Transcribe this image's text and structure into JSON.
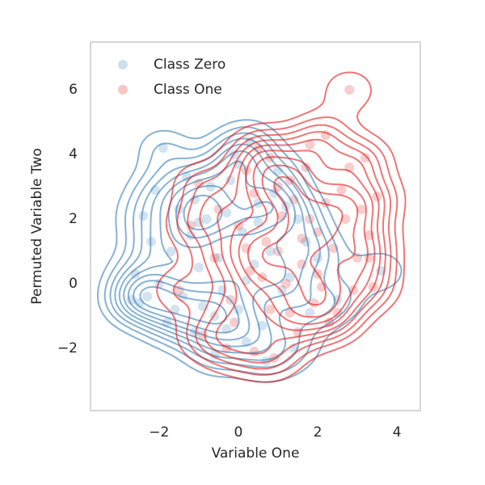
{
  "chart_data": {
    "type": "scatter",
    "x_label": "Variable One",
    "y_label": "Permuted Variable Two",
    "xlim": [
      -3.73,
      4.59
    ],
    "ylim": [
      -3.93,
      7.48
    ],
    "xticks": [
      {
        "value": -2,
        "label": "−2"
      },
      0,
      2,
      4
    ],
    "yticks": [
      {
        "value": -2,
        "label": "−2"
      },
      0,
      2,
      4,
      6
    ],
    "grid": false,
    "legend": "upper left",
    "kde_contours": true,
    "series": [
      {
        "name": "Class Zero",
        "color": "#377eb8",
        "x": [
          -2.7,
          -2.5,
          -2.3,
          -2.0,
          -2.6,
          -1.9,
          -2.1,
          -1.5,
          -1.2,
          -1.0,
          -1.4,
          -1.1,
          -0.6,
          -0.3,
          0.0,
          0.2,
          -0.5,
          -0.8,
          -0.2,
          0.3,
          -0.1,
          0.5,
          0.8,
          1.1,
          0.6,
          1.4,
          1.8,
          2.0,
          1.5,
          1.0,
          -1.7,
          -1.8,
          -0.9,
          -0.4,
          0.1,
          0.4,
          -0.7,
          -1.3,
          0.9,
          1.3,
          3.6,
          2.5,
          -2.2,
          -1.6,
          0.7,
          -0.3,
          0.0,
          -1.0,
          0.2,
          1.7,
          -2.4,
          -0.6,
          0.5,
          1.2,
          -1.1
        ],
        "y": [
          -0.5,
          -0.6,
          -0.4,
          0.0,
          0.3,
          4.2,
          2.9,
          2.3,
          1.5,
          0.5,
          -0.4,
          -1.5,
          -2.2,
          -1.4,
          -0.8,
          0.1,
          0.8,
          2.0,
          3.2,
          4.4,
          4.0,
          2.5,
          1.0,
          -0.2,
          -1.3,
          -2.0,
          -0.9,
          0.8,
          2.0,
          3.5,
          1.0,
          -1.2,
          -0.7,
          -0.2,
          1.6,
          0.6,
          3.0,
          3.3,
          2.8,
          0.2,
          0.4,
          -0.5,
          1.3,
          -0.8,
          -2.4,
          2.2,
          3.7,
          1.9,
          -1.8,
          1.3,
          2.1,
          -1.0,
          1.9,
          2.4,
          2.6
        ]
      },
      {
        "name": "Class One",
        "color": "#e41a1c",
        "x": [
          2.8,
          3.2,
          2.2,
          1.8,
          0.8,
          0.2,
          1.3,
          2.8,
          3.5,
          3.3,
          3.0,
          2.7,
          3.3,
          3.4,
          2.5,
          2.0,
          1.6,
          1.1,
          0.7,
          0.3,
          -0.2,
          -0.6,
          -1.2,
          -1.5,
          -0.9,
          -0.3,
          0.4,
          0.9,
          1.5,
          2.3,
          1.9,
          1.2,
          0.6,
          1.0,
          1.4,
          2.2,
          2.6,
          0.4,
          -0.5,
          -1.0,
          2.0,
          0.0,
          0.8,
          1.6,
          2.4,
          3.1,
          -0.1,
          1.7,
          0.5,
          2.9,
          1.3,
          0.2,
          2.1,
          1.8,
          1.0
        ],
        "y": [
          6.0,
          3.9,
          4.6,
          4.3,
          3.9,
          3.5,
          3.2,
          3.6,
          2.7,
          1.5,
          0.8,
          2.0,
          0.8,
          -0.1,
          -0.9,
          0.3,
          1.4,
          2.1,
          1.3,
          0.4,
          -0.5,
          0.8,
          1.8,
          -0.2,
          -1.6,
          -2.0,
          -2.1,
          -2.3,
          -1.5,
          -1.2,
          -0.6,
          0.0,
          0.2,
          1.0,
          2.6,
          2.5,
          2.9,
          2.8,
          2.3,
          3.1,
          1.6,
          1.8,
          -0.8,
          0.6,
          1.1,
          2.3,
          -1.2,
          3.6,
          4.2,
          -0.2,
          -0.9,
          1.1,
          -0.1,
          2.0,
          3.0
        ]
      }
    ]
  }
}
